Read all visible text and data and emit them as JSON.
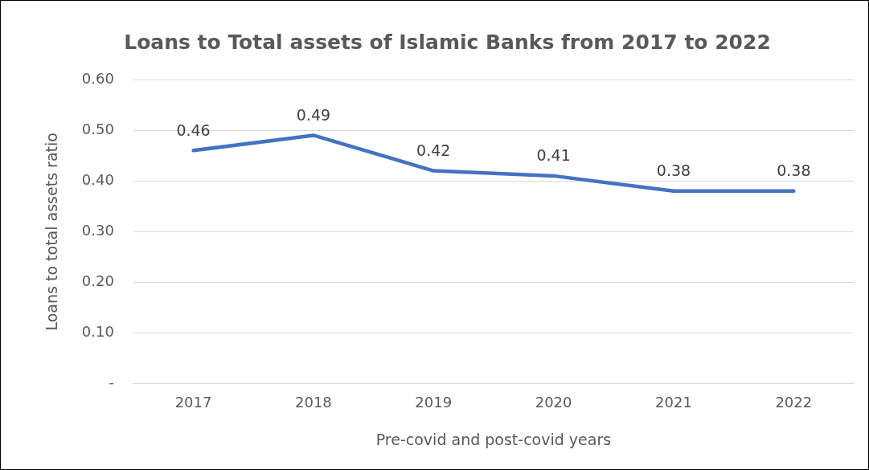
{
  "chart_data": {
    "type": "line",
    "title": "Loans to Total assets of Islamic Banks from 2017 to 2022",
    "xlabel": "Pre-covid and post-covid years",
    "ylabel": "Loans to total assets ratio",
    "categories": [
      "2017",
      "2018",
      "2019",
      "2020",
      "2021",
      "2022"
    ],
    "series": [
      {
        "color": "#4472c4",
        "values": [
          0.46,
          0.49,
          0.42,
          0.41,
          0.38,
          0.38
        ],
        "value_labels": [
          "0.46",
          "0.49",
          "0.42",
          "0.41",
          "0.38",
          "0.38"
        ]
      }
    ],
    "ylim": [
      0,
      0.6
    ],
    "yticks": [
      {
        "value": 0,
        "label": "-"
      },
      {
        "value": 0.1,
        "label": "0.10"
      },
      {
        "value": 0.2,
        "label": "0.20"
      },
      {
        "value": 0.3,
        "label": "0.30"
      },
      {
        "value": 0.4,
        "label": "0.40"
      },
      {
        "value": 0.5,
        "label": "0.50"
      },
      {
        "value": 0.6,
        "label": "0.60"
      }
    ],
    "grid": "y",
    "legend": false,
    "marker": "none",
    "line_style": "solid"
  }
}
